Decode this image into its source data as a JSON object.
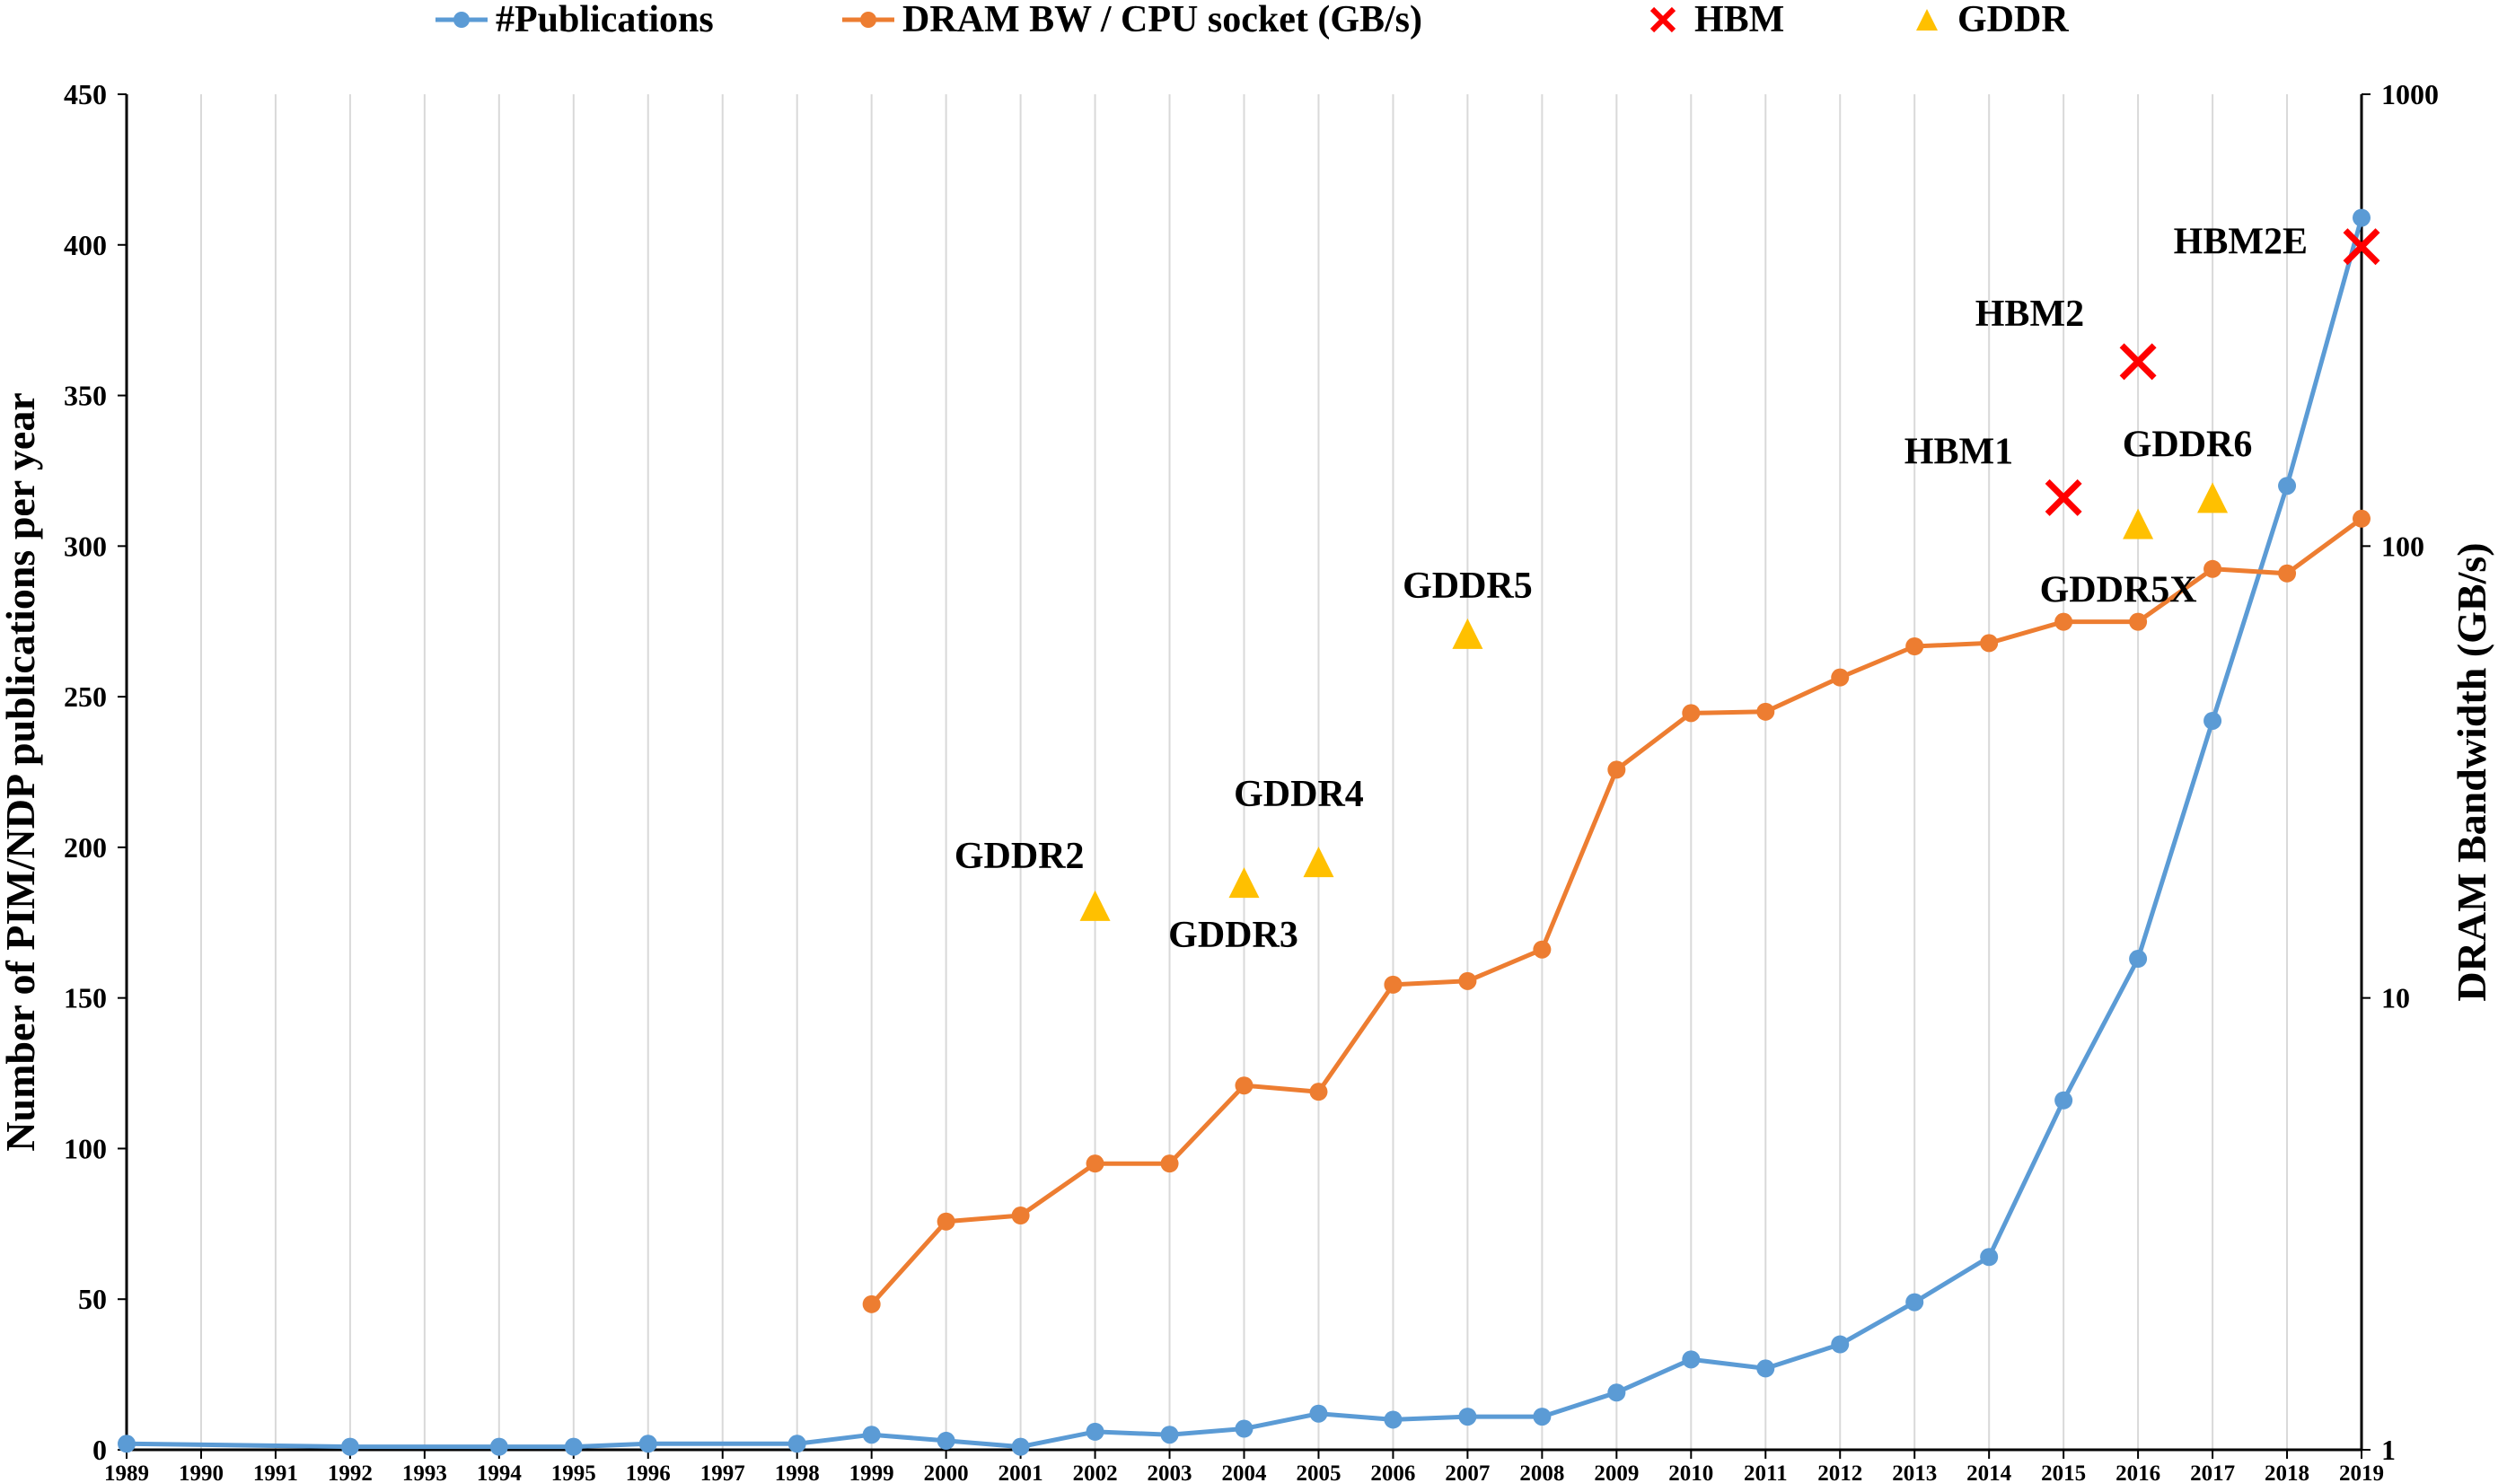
{
  "chart_data": {
    "type": "line",
    "title": "",
    "xlabel": "",
    "ylabel_left": "Number of PIM/NDP publications per year",
    "ylabel_right": "DRAM Bandwidth (GB/s)",
    "ylim_left": [
      0,
      450
    ],
    "yticks_left": [
      "0",
      "50",
      "100",
      "150",
      "200",
      "250",
      "300",
      "350",
      "400",
      "450"
    ],
    "ylim_right": [
      1,
      1000
    ],
    "yscale_right": "log",
    "yticks_right": [
      "1",
      "10",
      "100",
      "1000"
    ],
    "grid": "vertical",
    "legend_position": "top",
    "x": [
      "1989",
      "1990",
      "1991",
      "1992",
      "1993",
      "1994",
      "1995",
      "1996",
      "1997",
      "1998",
      "1999",
      "2000",
      "2001",
      "2002",
      "2003",
      "2004",
      "2005",
      "2006",
      "2007",
      "2008",
      "2009",
      "2010",
      "2011",
      "2012",
      "2013",
      "2014",
      "2015",
      "2016",
      "2017",
      "2018",
      "2019"
    ],
    "series": [
      {
        "name": "#Publications",
        "axis": "left",
        "style": "line-marker",
        "color": "#5B9BD5",
        "points": [
          [
            "1989",
            2
          ],
          [
            "1992",
            1
          ],
          [
            "1994",
            1
          ],
          [
            "1995",
            1
          ],
          [
            "1996",
            2
          ],
          [
            "1998",
            2
          ],
          [
            "1999",
            5
          ],
          [
            "2000",
            3
          ],
          [
            "2001",
            1
          ],
          [
            "2002",
            6
          ],
          [
            "2003",
            5
          ],
          [
            "2004",
            7
          ],
          [
            "2005",
            12
          ],
          [
            "2006",
            10
          ],
          [
            "2007",
            11
          ],
          [
            "2008",
            11
          ],
          [
            "2009",
            19
          ],
          [
            "2010",
            30
          ],
          [
            "2011",
            27
          ],
          [
            "2012",
            35
          ],
          [
            "2013",
            49
          ],
          [
            "2014",
            64
          ],
          [
            "2015",
            116
          ],
          [
            "2016",
            163
          ],
          [
            "2017",
            242
          ],
          [
            "2018",
            320
          ],
          [
            "2019",
            409
          ]
        ]
      },
      {
        "name": "DRAM BW / CPU socket (GB/s)",
        "axis": "right",
        "style": "line-marker",
        "color": "#ED7D31",
        "points": [
          [
            "1999",
            2.1
          ],
          [
            "2000",
            3.2
          ],
          [
            "2001",
            3.3
          ],
          [
            "2002",
            4.3
          ],
          [
            "2003",
            4.3
          ],
          [
            "2004",
            6.4
          ],
          [
            "2005",
            6.2
          ],
          [
            "2006",
            10.7
          ],
          [
            "2007",
            10.9
          ],
          [
            "2008",
            12.8
          ],
          [
            "2009",
            32
          ],
          [
            "2010",
            42.7
          ],
          [
            "2011",
            43
          ],
          [
            "2012",
            51.2
          ],
          [
            "2013",
            60
          ],
          [
            "2014",
            61
          ],
          [
            "2015",
            68
          ],
          [
            "2016",
            68
          ],
          [
            "2017",
            89
          ],
          [
            "2018",
            87
          ],
          [
            "2019",
            115
          ]
        ]
      },
      {
        "name": "HBM",
        "axis": "right",
        "style": "x-marker",
        "color": "#FF0000",
        "points": [
          {
            "x": "2015",
            "y": 128,
            "label": "HBM1"
          },
          {
            "x": "2016",
            "y": 256,
            "label": "HBM2"
          },
          {
            "x": "2019",
            "y": 460,
            "label": "HBM2E"
          }
        ]
      },
      {
        "name": "GDDR",
        "axis": "right",
        "style": "triangle-marker",
        "color": "#FFC000",
        "points": [
          {
            "x": "2002",
            "y": 16,
            "label": "GDDR2"
          },
          {
            "x": "2004",
            "y": 18,
            "label": "GDDR3"
          },
          {
            "x": "2005",
            "y": 20,
            "label": "GDDR4"
          },
          {
            "x": "2007",
            "y": 64,
            "label": "GDDR5"
          },
          {
            "x": "2016",
            "y": 112,
            "label": "GDDR5X"
          },
          {
            "x": "2017",
            "y": 128,
            "label": "GDDR6"
          }
        ]
      }
    ]
  }
}
